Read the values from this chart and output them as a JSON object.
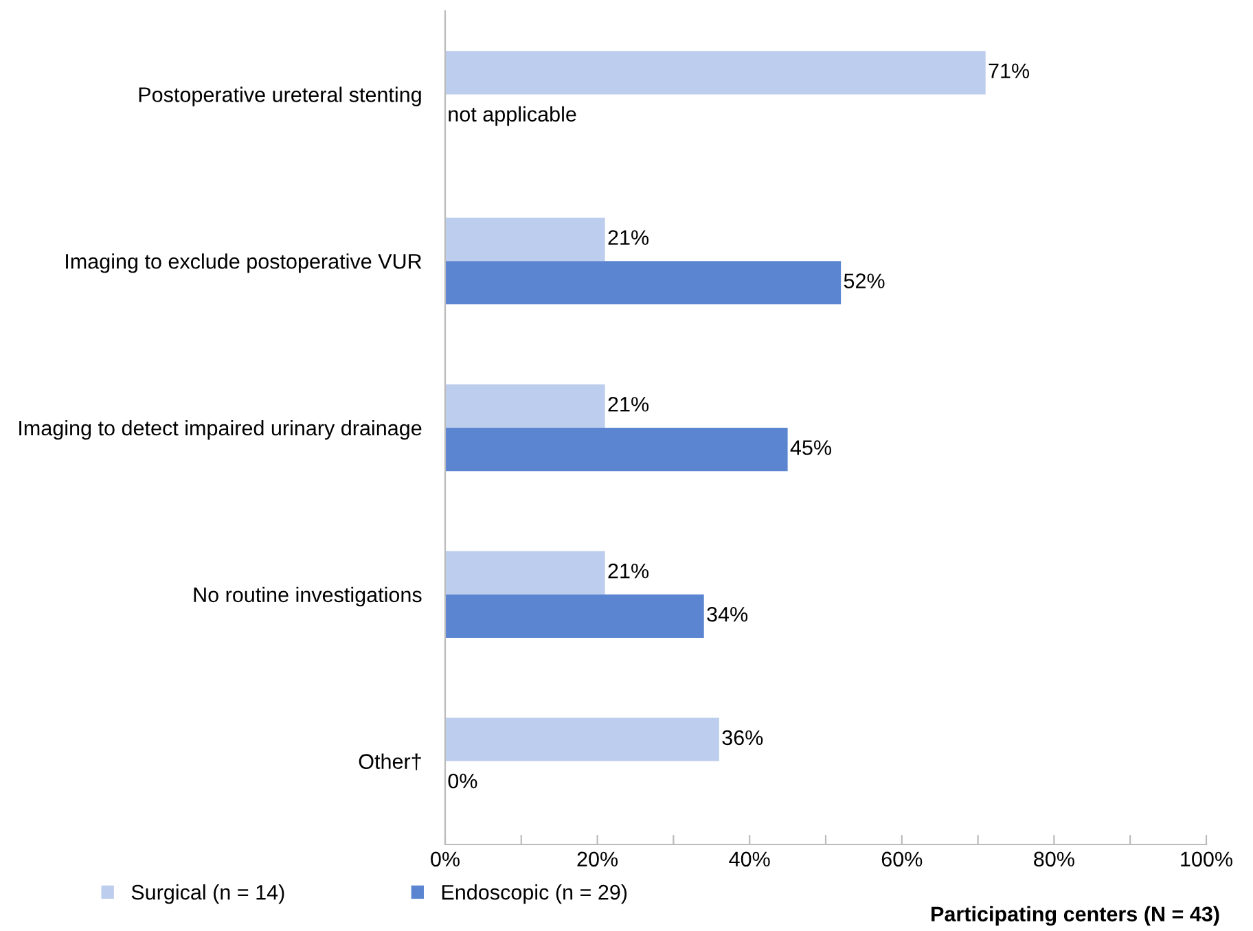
{
  "chart_data": {
    "type": "bar",
    "orientation": "horizontal",
    "xlabel": "Participating centers (N = 43)",
    "categories": [
      "Postoperative ureteral stenting",
      "Imaging to exclude postoperative VUR",
      "Imaging to detect impaired urinary drainage",
      "No routine investigations",
      "Other†"
    ],
    "series": [
      {
        "name": "Surgical (n = 14)",
        "color": "#bdcdee",
        "values": [
          71,
          21,
          21,
          21,
          36
        ],
        "value_labels": [
          "71%",
          "21%",
          "21%",
          "21%",
          "36%"
        ]
      },
      {
        "name": "Endoscopic (n = 29)",
        "color": "#5b85d0",
        "values": [
          null,
          52,
          45,
          34,
          0
        ],
        "value_labels": [
          "not applicable",
          "52%",
          "45%",
          "34%",
          "0%"
        ]
      }
    ],
    "xlim": [
      0,
      100
    ],
    "xticks": [
      {
        "value": 0,
        "label": "0%"
      },
      {
        "value": 10,
        "label": null
      },
      {
        "value": 20,
        "label": "20%"
      },
      {
        "value": 30,
        "label": null
      },
      {
        "value": 40,
        "label": "40%"
      },
      {
        "value": 50,
        "label": null
      },
      {
        "value": 60,
        "label": "60%"
      },
      {
        "value": 70,
        "label": null
      },
      {
        "value": 80,
        "label": "80%"
      },
      {
        "value": 90,
        "label": null
      },
      {
        "value": 100,
        "label": "100%"
      }
    ],
    "grid": false,
    "legend": "bottom left"
  }
}
